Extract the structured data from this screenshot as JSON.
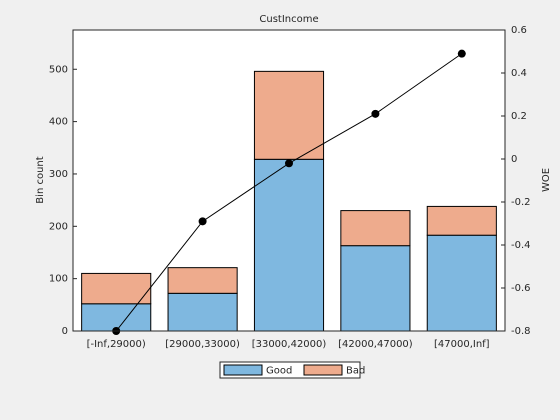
{
  "chart_data": {
    "type": "bar-line",
    "title": "CustIncome",
    "ylabel": "Bin count",
    "y2label": "WOE",
    "categories": [
      "[-Inf,29000)",
      "[29000,33000)",
      "[33000,42000)",
      "[42000,47000)",
      "[47000,Inf]"
    ],
    "series": [
      {
        "name": "Good",
        "color": "#7fb8e0",
        "values": [
          52,
          72,
          328,
          163,
          183
        ]
      },
      {
        "name": "Bad",
        "color": "#eeab8d",
        "values": [
          58,
          49,
          168,
          67,
          55
        ]
      },
      {
        "type": "line",
        "axis": "y2",
        "color": "#000000",
        "values": [
          -0.8,
          -0.29,
          -0.02,
          0.21,
          0.49
        ]
      }
    ],
    "ylim": [
      0,
      575
    ],
    "yticks": [
      0,
      100,
      200,
      300,
      400,
      500
    ],
    "y2lim": [
      -0.8,
      0.6
    ],
    "y2ticks": [
      -0.8,
      -0.6,
      -0.4,
      -0.2,
      0,
      0.2,
      0.4,
      0.6
    ],
    "grid": false,
    "legend": "bottom"
  }
}
